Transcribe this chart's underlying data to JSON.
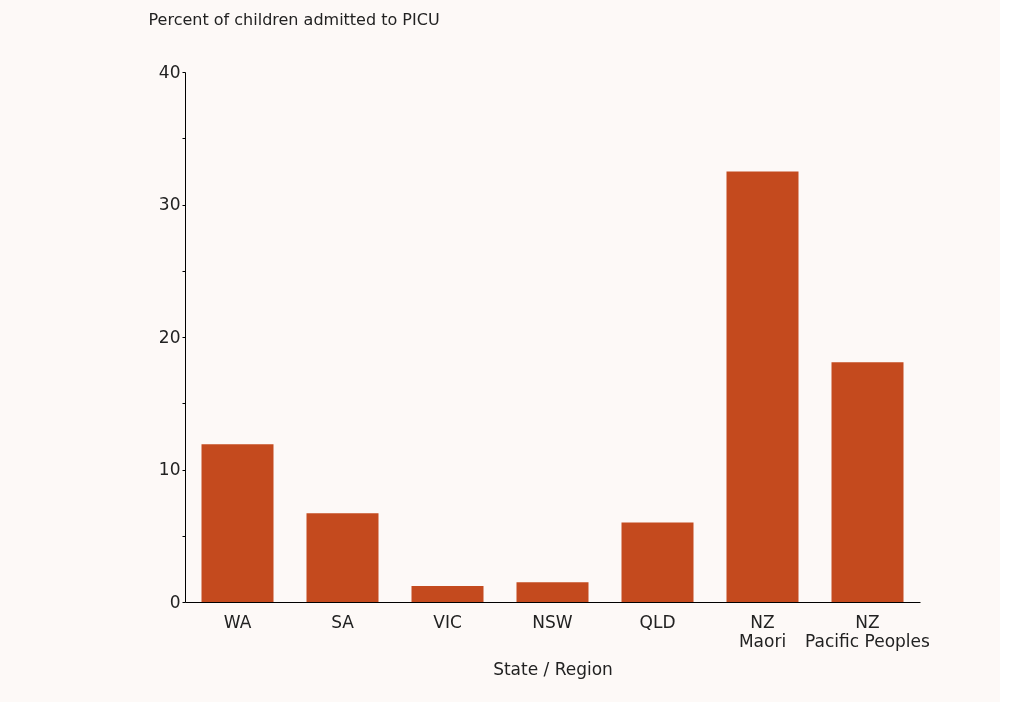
{
  "chart_data": {
    "type": "bar",
    "ylabel": "Percent of children admitted to PICU",
    "xlabel": "State / Region",
    "categories": [
      "WA",
      "SA",
      "VIC",
      "NSW",
      "QLD",
      "NZ\nMaori",
      "NZ\nPacific Peoples"
    ],
    "values": [
      11.9,
      6.7,
      1.2,
      1.5,
      6.0,
      32.5,
      18.1
    ],
    "color": "#c44a1e",
    "ylim": [
      0,
      40
    ],
    "yticks": [
      0,
      {
        "value": 5,
        "label": null
      },
      10,
      {
        "value": 15,
        "label": null
      },
      20,
      {
        "value": 25,
        "label": null
      },
      30,
      {
        "value": 35,
        "label": null
      },
      40
    ],
    "grid": false
  }
}
